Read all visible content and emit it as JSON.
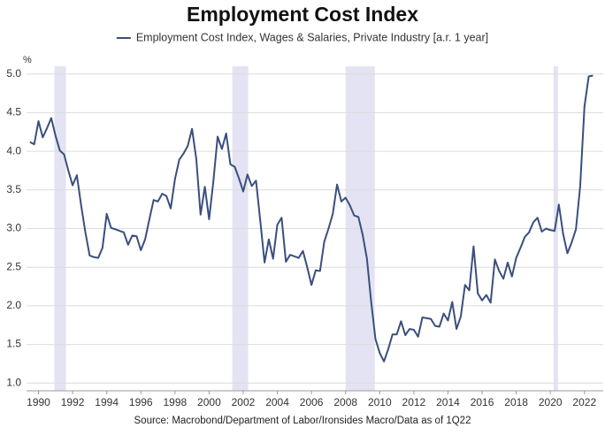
{
  "chart_data": {
    "type": "line",
    "title": "Employment Cost Index",
    "y_unit_label": "%",
    "source": "Source: Macrobond/Department of Labor/Ironsides Macro/Data as of 1Q22",
    "xlim": [
      1989.3,
      2023.1
    ],
    "xticks": [
      1990,
      1992,
      1994,
      1996,
      1998,
      2000,
      2002,
      2004,
      2006,
      2008,
      2010,
      2012,
      2014,
      2016,
      2018,
      2020,
      2022
    ],
    "ylim": [
      0.9,
      5.1
    ],
    "yticks": [
      {
        "value": 1,
        "label": "1.0"
      },
      {
        "value": 1.5,
        "label": "1.5"
      },
      {
        "value": 2,
        "label": "2.0"
      },
      {
        "value": 2.5,
        "label": "2.5"
      },
      {
        "value": 3,
        "label": "3.0"
      },
      {
        "value": 3.5,
        "label": "3.5"
      },
      {
        "value": 4,
        "label": "4.0"
      },
      {
        "value": 4.5,
        "label": "4.5"
      },
      {
        "value": 5,
        "label": "5.0"
      }
    ],
    "grid": true,
    "shaded_periods": [
      [
        1990.93,
        1991.61
      ],
      [
        2001.36,
        2002.29
      ],
      [
        2008.0,
        2009.71
      ],
      [
        2020.19,
        2020.45
      ]
    ],
    "shade_color": "#e3e3f3",
    "x": [
      1989.5,
      1989.75,
      1990,
      1990.25,
      1990.5,
      1990.75,
      1991,
      1991.25,
      1991.5,
      1991.75,
      1992,
      1992.25,
      1992.5,
      1992.75,
      1993,
      1993.25,
      1993.5,
      1993.75,
      1994,
      1994.25,
      1994.5,
      1994.75,
      1995,
      1995.25,
      1995.5,
      1995.75,
      1996,
      1996.25,
      1996.5,
      1996.75,
      1997,
      1997.25,
      1997.5,
      1997.75,
      1998,
      1998.25,
      1998.5,
      1998.75,
      1999,
      1999.25,
      1999.5,
      1999.75,
      2000,
      2000.25,
      2000.5,
      2000.75,
      2001,
      2001.25,
      2001.5,
      2001.75,
      2002,
      2002.25,
      2002.5,
      2002.75,
      2003,
      2003.25,
      2003.5,
      2003.75,
      2004,
      2004.25,
      2004.5,
      2004.75,
      2005,
      2005.25,
      2005.5,
      2005.75,
      2006,
      2006.25,
      2006.5,
      2006.75,
      2007,
      2007.25,
      2007.5,
      2007.75,
      2008,
      2008.25,
      2008.5,
      2008.75,
      2009,
      2009.25,
      2009.5,
      2009.75,
      2010,
      2010.25,
      2010.5,
      2010.75,
      2011,
      2011.25,
      2011.5,
      2011.75,
      2012,
      2012.25,
      2012.5,
      2012.75,
      2013,
      2013.25,
      2013.5,
      2013.75,
      2014,
      2014.25,
      2014.5,
      2014.75,
      2015,
      2015.25,
      2015.5,
      2015.75,
      2016,
      2016.25,
      2016.5,
      2016.75,
      2017,
      2017.25,
      2017.5,
      2017.75,
      2018,
      2018.25,
      2018.5,
      2018.75,
      2019,
      2019.25,
      2019.5,
      2019.75,
      2020,
      2020.25,
      2020.5,
      2020.75,
      2021,
      2021.25,
      2021.5,
      2021.75,
      2022,
      2022.25,
      2022.5
    ],
    "series": [
      {
        "name": "Employment Cost Index, Wages & Salaries, Private Industry [a.r. 1 year]",
        "color": "#3a4f7c",
        "values": [
          4.12,
          4.09,
          4.39,
          4.18,
          4.3,
          4.43,
          4.2,
          4.01,
          3.96,
          3.75,
          3.56,
          3.69,
          3.3,
          2.95,
          2.65,
          2.63,
          2.62,
          2.75,
          3.19,
          3.01,
          2.99,
          2.97,
          2.95,
          2.79,
          2.91,
          2.9,
          2.72,
          2.86,
          3.12,
          3.37,
          3.35,
          3.45,
          3.42,
          3.26,
          3.64,
          3.89,
          3.97,
          4.07,
          4.29,
          3.9,
          3.18,
          3.54,
          3.12,
          3.61,
          4.19,
          4.03,
          4.23,
          3.83,
          3.8,
          3.65,
          3.48,
          3.7,
          3.55,
          3.62,
          3.1,
          2.56,
          2.86,
          2.61,
          3.05,
          3.14,
          2.57,
          2.66,
          2.64,
          2.62,
          2.71,
          2.5,
          2.27,
          2.46,
          2.45,
          2.83,
          3.0,
          3.19,
          3.57,
          3.35,
          3.4,
          3.3,
          3.17,
          3.15,
          2.92,
          2.61,
          2.05,
          1.57,
          1.39,
          1.28,
          1.44,
          1.63,
          1.63,
          1.8,
          1.62,
          1.7,
          1.69,
          1.6,
          1.85,
          1.84,
          1.83,
          1.74,
          1.73,
          1.9,
          1.81,
          2.05,
          1.7,
          1.86,
          2.27,
          2.2,
          2.77,
          2.16,
          2.07,
          2.14,
          2.04,
          2.6,
          2.45,
          2.35,
          2.56,
          2.38,
          2.62,
          2.75,
          2.89,
          2.95,
          3.08,
          3.14,
          2.96,
          3.0,
          2.98,
          2.97,
          3.31,
          2.93,
          2.68,
          2.82,
          2.99,
          3.55,
          4.58,
          4.97,
          4.98
        ]
      }
    ]
  }
}
